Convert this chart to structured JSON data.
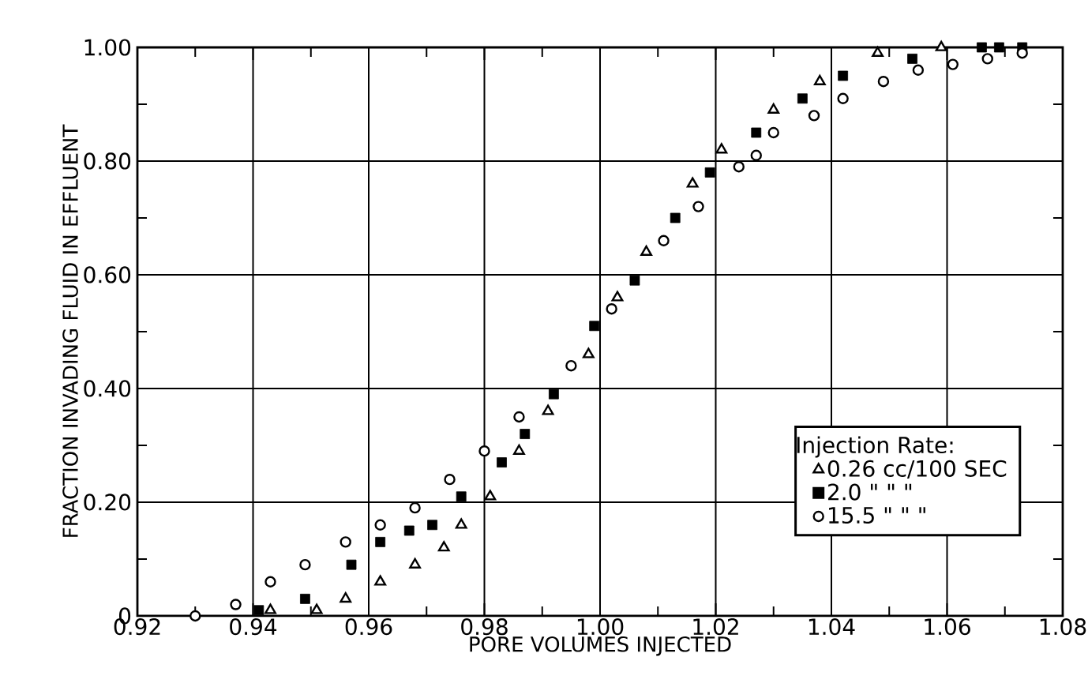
{
  "chart_data": {
    "type": "scatter",
    "xlabel": "PORE VOLUMES INJECTED",
    "ylabel": "FRACTION INVADING FLUID IN EFFLUENT",
    "legend_title": "Injection Rate:",
    "legend": "bottom right",
    "grid": true,
    "xlim": [
      0.92,
      1.08
    ],
    "ylim": [
      0,
      1.0
    ],
    "xticks": [
      {
        "value": 0.92,
        "label": "0.92"
      },
      {
        "value": 0.94,
        "label": "0.94"
      },
      {
        "value": 0.96,
        "label": "0.96"
      },
      {
        "value": 0.98,
        "label": "0.98"
      },
      {
        "value": 1.0,
        "label": "1.00"
      },
      {
        "value": 1.02,
        "label": "1.02"
      },
      {
        "value": 1.04,
        "label": "1.04"
      },
      {
        "value": 1.06,
        "label": "1.06"
      },
      {
        "value": 1.08,
        "label": "1.08"
      }
    ],
    "yticks": [
      0,
      {
        "value": 0.2,
        "label": "0.20"
      },
      {
        "value": 0.4,
        "label": "0.40"
      },
      {
        "value": 0.6,
        "label": "0.60"
      },
      {
        "value": 0.8,
        "label": "0.80"
      },
      {
        "value": 1.0,
        "label": "1.00"
      }
    ],
    "series": [
      {
        "name": "0.26 cc/100 SEC",
        "color": "#000000",
        "marker": "triangle",
        "x": [
          0.943,
          0.951,
          0.956,
          0.962,
          0.968,
          0.973,
          0.976,
          0.981,
          0.986,
          0.991,
          0.998,
          1.003,
          1.008,
          1.016,
          1.021,
          1.03,
          1.038,
          1.048,
          1.059
        ],
        "values": [
          0.01,
          0.01,
          0.03,
          0.06,
          0.09,
          0.12,
          0.16,
          0.21,
          0.29,
          0.36,
          0.46,
          0.56,
          0.64,
          0.76,
          0.82,
          0.89,
          0.94,
          0.99,
          1.0
        ]
      },
      {
        "name": "2.0 \" \" \"",
        "color": "#000000",
        "marker": "square",
        "x": [
          0.941,
          0.949,
          0.957,
          0.962,
          0.967,
          0.971,
          0.976,
          0.983,
          0.987,
          0.992,
          0.999,
          1.006,
          1.013,
          1.019,
          1.027,
          1.035,
          1.042,
          1.054,
          1.066,
          1.069,
          1.073
        ],
        "values": [
          0.01,
          0.03,
          0.09,
          0.13,
          0.15,
          0.16,
          0.21,
          0.27,
          0.32,
          0.39,
          0.51,
          0.59,
          0.7,
          0.78,
          0.85,
          0.91,
          0.95,
          0.98,
          1.0,
          1.0,
          1.0
        ]
      },
      {
        "name": "15.5 \" \" \"",
        "color": "#000000",
        "marker": "circle",
        "x": [
          0.93,
          0.937,
          0.943,
          0.949,
          0.956,
          0.962,
          0.968,
          0.974,
          0.98,
          0.986,
          0.995,
          1.002,
          1.011,
          1.017,
          1.024,
          1.027,
          1.03,
          1.037,
          1.042,
          1.049,
          1.055,
          1.061,
          1.067,
          1.073
        ],
        "values": [
          0.0,
          0.02,
          0.06,
          0.09,
          0.13,
          0.16,
          0.19,
          0.24,
          0.29,
          0.35,
          0.44,
          0.54,
          0.66,
          0.72,
          0.79,
          0.81,
          0.85,
          0.88,
          0.91,
          0.94,
          0.96,
          0.97,
          0.98,
          0.99
        ]
      }
    ]
  }
}
